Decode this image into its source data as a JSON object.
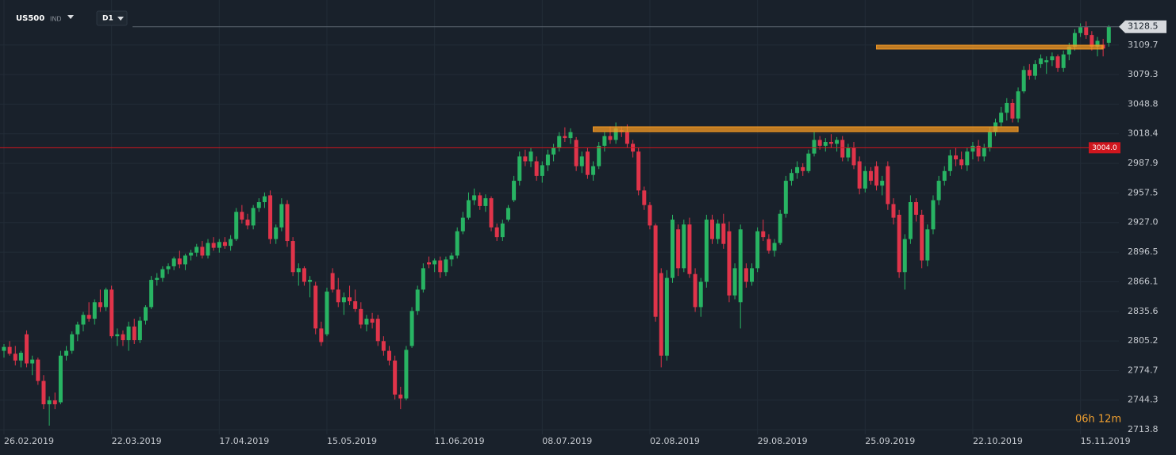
{
  "chart_data": {
    "type": "candlestick",
    "symbol": "US500",
    "symbol_type": "IND",
    "timeframe": "D1",
    "countdown": "06h 12m",
    "up_color": "#28b463",
    "down_color": "#e0344a",
    "grid": true,
    "ylim": [
      2709,
      3156
    ],
    "yticks": [
      3109.7,
      3079.3,
      3048.8,
      3018.4,
      2987.9,
      2957.5,
      {
        "value": 2927,
        "label": "2927.0"
      },
      2896.5,
      2866.1,
      2835.6,
      2805.2,
      2774.7,
      2744.3,
      2713.8
    ],
    "last_price": 3128.5,
    "hline": {
      "value": 3004,
      "label": "3004.0",
      "color": "#d0161e"
    },
    "zones": [
      {
        "from": 154,
        "to": 194,
        "low": 3105.5,
        "high": 3109.5,
        "color": "#f59a23"
      },
      {
        "from": 104,
        "to": 179,
        "low": 3020.5,
        "high": 3025.5,
        "color": "#f59a23"
      }
    ],
    "categories": [
      "26.02.2019",
      null,
      null,
      null,
      null,
      null,
      null,
      null,
      null,
      null,
      null,
      null,
      null,
      null,
      null,
      null,
      null,
      null,
      null,
      "22.03.2019",
      null,
      null,
      null,
      null,
      null,
      null,
      null,
      null,
      null,
      null,
      null,
      null,
      null,
      null,
      null,
      null,
      null,
      null,
      "17.04.2019",
      null,
      null,
      null,
      null,
      null,
      null,
      null,
      null,
      null,
      null,
      null,
      null,
      null,
      null,
      null,
      null,
      null,
      null,
      "15.05.2019",
      null,
      null,
      null,
      null,
      null,
      null,
      null,
      null,
      null,
      null,
      null,
      null,
      null,
      null,
      null,
      null,
      null,
      null,
      "11.06.2019",
      null,
      null,
      null,
      null,
      null,
      null,
      null,
      null,
      null,
      null,
      null,
      null,
      null,
      null,
      null,
      null,
      null,
      null,
      "08.07.2019",
      null,
      null,
      null,
      null,
      null,
      null,
      null,
      null,
      null,
      null,
      null,
      null,
      null,
      null,
      null,
      null,
      null,
      null,
      "02.08.2019",
      null,
      null,
      null,
      null,
      null,
      null,
      null,
      null,
      null,
      null,
      null,
      null,
      null,
      null,
      null,
      null,
      null,
      null,
      "29.08.2019",
      null,
      null,
      null,
      null,
      null,
      null,
      null,
      null,
      null,
      null,
      null,
      null,
      null,
      null,
      null,
      null,
      null,
      null,
      "25.09.2019",
      null,
      null,
      null,
      null,
      null,
      null,
      null,
      null,
      null,
      null,
      null,
      null,
      null,
      null,
      null,
      null,
      null,
      null,
      "22.10.2019",
      null,
      null,
      null,
      null,
      null,
      null,
      null,
      null,
      null,
      null,
      null,
      null,
      null,
      null,
      null,
      null,
      null,
      null,
      "15.11.2019",
      null,
      null,
      null,
      null,
      null
    ],
    "ohlc": [
      [
        2795,
        2802,
        2788,
        2799
      ],
      [
        2799,
        2805,
        2790,
        2792
      ],
      [
        2792,
        2800,
        2780,
        2785
      ],
      [
        2785,
        2795,
        2778,
        2793
      ],
      [
        2812,
        2816,
        2778,
        2782
      ],
      [
        2782,
        2790,
        2770,
        2786
      ],
      [
        2786,
        2788,
        2760,
        2764
      ],
      [
        2764,
        2770,
        2735,
        2740
      ],
      [
        2740,
        2748,
        2718,
        2744
      ],
      [
        2744,
        2752,
        2735,
        2740
      ],
      [
        2742,
        2795,
        2740,
        2790
      ],
      [
        2790,
        2800,
        2785,
        2795
      ],
      [
        2795,
        2815,
        2792,
        2812
      ],
      [
        2812,
        2825,
        2805,
        2822
      ],
      [
        2822,
        2835,
        2815,
        2832
      ],
      [
        2832,
        2845,
        2825,
        2828
      ],
      [
        2828,
        2848,
        2822,
        2845
      ],
      [
        2845,
        2858,
        2835,
        2840
      ],
      [
        2840,
        2860,
        2836,
        2858
      ],
      [
        2858,
        2862,
        2808,
        2810
      ],
      [
        2810,
        2818,
        2800,
        2812
      ],
      [
        2812,
        2816,
        2800,
        2806
      ],
      [
        2806,
        2825,
        2795,
        2820
      ],
      [
        2820,
        2828,
        2802,
        2806
      ],
      [
        2806,
        2830,
        2803,
        2826
      ],
      [
        2826,
        2842,
        2822,
        2840
      ],
      [
        2840,
        2872,
        2838,
        2868
      ],
      [
        2868,
        2875,
        2862,
        2870
      ],
      [
        2870,
        2882,
        2866,
        2879
      ],
      [
        2879,
        2885,
        2874,
        2882
      ],
      [
        2882,
        2892,
        2878,
        2890
      ],
      [
        2890,
        2898,
        2880,
        2884
      ],
      [
        2884,
        2895,
        2878,
        2893
      ],
      [
        2893,
        2899,
        2888,
        2896
      ],
      [
        2896,
        2905,
        2892,
        2902
      ],
      [
        2902,
        2908,
        2890,
        2893
      ],
      [
        2893,
        2910,
        2890,
        2906
      ],
      [
        2906,
        2912,
        2898,
        2901
      ],
      [
        2901,
        2910,
        2896,
        2907
      ],
      [
        2907,
        2912,
        2900,
        2903
      ],
      [
        2903,
        2914,
        2898,
        2910
      ],
      [
        2910,
        2942,
        2908,
        2938
      ],
      [
        2938,
        2945,
        2926,
        2930
      ],
      [
        2930,
        2936,
        2920,
        2924
      ],
      [
        2924,
        2945,
        2920,
        2942
      ],
      [
        2942,
        2952,
        2938,
        2948
      ],
      [
        2948,
        2958,
        2942,
        2954
      ],
      [
        2955,
        2960,
        2905,
        2910
      ],
      [
        2910,
        2925,
        2905,
        2922
      ],
      [
        2922,
        2952,
        2918,
        2946
      ],
      [
        2946,
        2950,
        2902,
        2908
      ],
      [
        2908,
        2912,
        2872,
        2876
      ],
      [
        2876,
        2885,
        2862,
        2880
      ],
      [
        2880,
        2882,
        2862,
        2866
      ],
      [
        2866,
        2872,
        2850,
        2868
      ],
      [
        2862,
        2866,
        2812,
        2818
      ],
      [
        2818,
        2825,
        2800,
        2804
      ],
      [
        2812,
        2860,
        2810,
        2856
      ],
      [
        2875,
        2880,
        2855,
        2858
      ],
      [
        2858,
        2870,
        2840,
        2845
      ],
      [
        2845,
        2855,
        2832,
        2850
      ],
      [
        2850,
        2862,
        2842,
        2846
      ],
      [
        2846,
        2858,
        2835,
        2838
      ],
      [
        2838,
        2845,
        2818,
        2822
      ],
      [
        2822,
        2832,
        2815,
        2828
      ],
      [
        2828,
        2834,
        2818,
        2824
      ],
      [
        2828,
        2832,
        2800,
        2805
      ],
      [
        2805,
        2810,
        2790,
        2795
      ],
      [
        2795,
        2800,
        2780,
        2785
      ],
      [
        2785,
        2790,
        2745,
        2750
      ],
      [
        2750,
        2758,
        2735,
        2746
      ],
      [
        2746,
        2800,
        2744,
        2796
      ],
      [
        2800,
        2840,
        2798,
        2836
      ],
      [
        2836,
        2862,
        2832,
        2858
      ],
      [
        2858,
        2885,
        2855,
        2880
      ],
      [
        2886,
        2892,
        2880,
        2884
      ],
      [
        2884,
        2890,
        2876,
        2888
      ],
      [
        2888,
        2892,
        2870,
        2876
      ],
      [
        2876,
        2892,
        2872,
        2889
      ],
      [
        2889,
        2896,
        2882,
        2893
      ],
      [
        2893,
        2922,
        2890,
        2918
      ],
      [
        2918,
        2938,
        2915,
        2932
      ],
      [
        2932,
        2958,
        2930,
        2950
      ],
      [
        2950,
        2962,
        2945,
        2955
      ],
      [
        2955,
        2958,
        2940,
        2944
      ],
      [
        2944,
        2956,
        2938,
        2952
      ],
      [
        2952,
        2954,
        2918,
        2922
      ],
      [
        2922,
        2926,
        2908,
        2912
      ],
      [
        2912,
        2930,
        2908,
        2926
      ],
      [
        2930,
        2945,
        2928,
        2942
      ],
      [
        2950,
        2975,
        2948,
        2970
      ],
      [
        2970,
        3000,
        2965,
        2995
      ],
      [
        2995,
        3002,
        2985,
        2990
      ],
      [
        2990,
        3004,
        2984,
        3000
      ],
      [
        2990,
        2995,
        2970,
        2975
      ],
      [
        2975,
        2990,
        2968,
        2986
      ],
      [
        2986,
        3002,
        2980,
        2997
      ],
      [
        2997,
        3008,
        2990,
        3004
      ],
      [
        3004,
        3020,
        3000,
        3016
      ],
      [
        3016,
        3025,
        3010,
        3014
      ],
      [
        3014,
        3024,
        3008,
        3020
      ],
      [
        3012,
        3015,
        2980,
        2985
      ],
      [
        2985,
        3000,
        2978,
        2995
      ],
      [
        3000,
        3004,
        2972,
        2976
      ],
      [
        2976,
        2990,
        2970,
        2985
      ],
      [
        2985,
        3010,
        2982,
        3006
      ],
      [
        3006,
        3020,
        3000,
        3016
      ],
      [
        3016,
        3026,
        3008,
        3012
      ],
      [
        3012,
        3030,
        3008,
        3024
      ],
      [
        3022,
        3026,
        3015,
        3020
      ],
      [
        3020,
        3028,
        3004,
        3008
      ],
      [
        3008,
        3012,
        2994,
        3000
      ],
      [
        3000,
        3004,
        2955,
        2960
      ],
      [
        2960,
        2964,
        2940,
        2945
      ],
      [
        2945,
        2948,
        2920,
        2924
      ],
      [
        2924,
        2926,
        2825,
        2830
      ],
      [
        2875,
        2880,
        2778,
        2790
      ],
      [
        2790,
        2878,
        2785,
        2870
      ],
      [
        2870,
        2935,
        2865,
        2930
      ],
      [
        2920,
        2925,
        2872,
        2880
      ],
      [
        2880,
        2930,
        2876,
        2925
      ],
      [
        2925,
        2932,
        2870,
        2874
      ],
      [
        2874,
        2880,
        2835,
        2840
      ],
      [
        2840,
        2870,
        2830,
        2866
      ],
      [
        2866,
        2935,
        2860,
        2930
      ],
      [
        2930,
        2935,
        2905,
        2910
      ],
      [
        2910,
        2930,
        2905,
        2926
      ],
      [
        2926,
        2936,
        2900,
        2905
      ],
      [
        2918,
        2928,
        2845,
        2852
      ],
      [
        2852,
        2885,
        2848,
        2880
      ],
      [
        2845,
        2925,
        2818,
        2920
      ],
      [
        2880,
        2885,
        2860,
        2866
      ],
      [
        2866,
        2885,
        2862,
        2880
      ],
      [
        2880,
        2922,
        2876,
        2918
      ],
      [
        2918,
        2930,
        2908,
        2912
      ],
      [
        2910,
        2915,
        2895,
        2898
      ],
      [
        2898,
        2910,
        2892,
        2906
      ],
      [
        2906,
        2940,
        2904,
        2936
      ],
      [
        2936,
        2975,
        2932,
        2970
      ],
      [
        2970,
        2982,
        2965,
        2978
      ],
      [
        2978,
        2990,
        2972,
        2984
      ],
      [
        2984,
        2988,
        2975,
        2980
      ],
      [
        2980,
        3002,
        2978,
        2998
      ],
      [
        2998,
        3020,
        2995,
        3012
      ],
      [
        3012,
        3016,
        3002,
        3006
      ],
      [
        3006,
        3014,
        3000,
        3010
      ],
      [
        3010,
        3018,
        3004,
        3008
      ],
      [
        3008,
        3015,
        3000,
        3012
      ],
      [
        3012,
        3016,
        2990,
        2994
      ],
      [
        2994,
        3008,
        2990,
        3004
      ],
      [
        3004,
        3010,
        2982,
        2986
      ],
      [
        2990,
        2995,
        2956,
        2962
      ],
      [
        2962,
        2985,
        2958,
        2980
      ],
      [
        2980,
        2984,
        2966,
        2970
      ],
      [
        2985,
        2990,
        2960,
        2965
      ],
      [
        2965,
        2975,
        2955,
        2970
      ],
      [
        2985,
        2990,
        2940,
        2946
      ],
      [
        2946,
        2952,
        2925,
        2932
      ],
      [
        2935,
        2940,
        2870,
        2876
      ],
      [
        2876,
        2915,
        2858,
        2910
      ],
      [
        2910,
        2955,
        2905,
        2948
      ],
      [
        2948,
        2952,
        2928,
        2935
      ],
      [
        2935,
        2940,
        2880,
        2888
      ],
      [
        2888,
        2925,
        2882,
        2920
      ],
      [
        2920,
        2955,
        2915,
        2950
      ],
      [
        2950,
        2975,
        2945,
        2970
      ],
      [
        2970,
        2985,
        2965,
        2980
      ],
      [
        2980,
        3002,
        2975,
        2996
      ],
      [
        2996,
        3004,
        2985,
        2992
      ],
      [
        2992,
        3000,
        2982,
        2986
      ],
      [
        2986,
        3004,
        2980,
        3000
      ],
      [
        3000,
        3010,
        2992,
        3006
      ],
      [
        3006,
        3012,
        2990,
        2995
      ],
      [
        2995,
        3008,
        2990,
        3004
      ],
      [
        3004,
        3025,
        3000,
        3020
      ],
      [
        3020,
        3034,
        3016,
        3030
      ],
      [
        3030,
        3046,
        3026,
        3040
      ],
      [
        3040,
        3055,
        3032,
        3050
      ],
      [
        3050,
        3054,
        3030,
        3034
      ],
      [
        3034,
        3066,
        3030,
        3062
      ],
      [
        3062,
        3088,
        3060,
        3084
      ],
      [
        3084,
        3090,
        3074,
        3078
      ],
      [
        3078,
        3094,
        3074,
        3090
      ],
      [
        3090,
        3100,
        3086,
        3096
      ],
      [
        3092,
        3098,
        3080,
        3094
      ],
      [
        3094,
        3102,
        3088,
        3098
      ],
      [
        3098,
        3100,
        3082,
        3086
      ],
      [
        3086,
        3104,
        3082,
        3100
      ],
      [
        3100,
        3112,
        3094,
        3108
      ],
      [
        3108,
        3126,
        3104,
        3122
      ],
      [
        3122,
        3132,
        3118,
        3128
      ],
      [
        3128,
        3134,
        3116,
        3120
      ],
      [
        3120,
        3124,
        3104,
        3108
      ],
      [
        3108,
        3118,
        3098,
        3114
      ],
      [
        3110,
        3116,
        3098,
        3106
      ],
      [
        3112,
        3130,
        3108,
        3128.5
      ]
    ]
  }
}
